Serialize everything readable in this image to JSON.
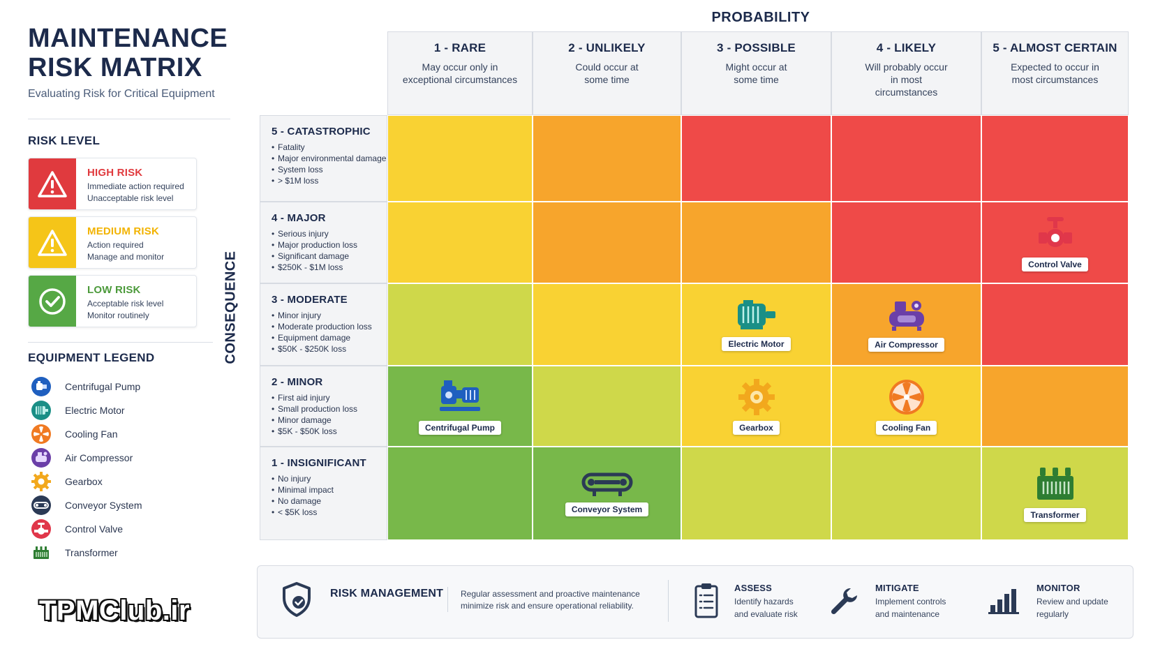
{
  "header": {
    "title_line1": "MAINTENANCE",
    "title_line2": "RISK MATRIX",
    "subtitle": "Evaluating Risk for Critical Equipment"
  },
  "risk_level": {
    "heading": "RISK LEVEL",
    "items": [
      {
        "label": "HIGH RISK",
        "line1": "Immediate action required",
        "line2": "Unacceptable risk level",
        "color": "#e03a3e",
        "icon": "warning-icon"
      },
      {
        "label": "MEDIUM RISK",
        "line1": "Action required",
        "line2": "Manage and monitor",
        "color": "#f5c518",
        "icon": "warning-icon"
      },
      {
        "label": "LOW RISK",
        "line1": "Acceptable risk level",
        "line2": "Monitor routinely",
        "color": "#56a845",
        "icon": "check-circle-icon"
      }
    ]
  },
  "equipment_legend": {
    "heading": "EQUIPMENT LEGEND",
    "items": [
      {
        "label": "Centrifugal Pump",
        "icon": "pump-icon",
        "color": "#1f5fbf"
      },
      {
        "label": "Electric Motor",
        "icon": "motor-icon",
        "color": "#1a8f86"
      },
      {
        "label": "Cooling Fan",
        "icon": "fan-icon",
        "color": "#f07a22"
      },
      {
        "label": "Air Compressor",
        "icon": "compressor-icon",
        "color": "#6b3fa8"
      },
      {
        "label": "Gearbox",
        "icon": "gear-icon",
        "color": "#f2a81d"
      },
      {
        "label": "Conveyor System",
        "icon": "conveyor-icon",
        "color": "#2b3a55"
      },
      {
        "label": "Control Valve",
        "icon": "valve-icon",
        "color": "#e0374a"
      },
      {
        "label": "Transformer",
        "icon": "transformer-icon",
        "color": "#2e7d32"
      }
    ]
  },
  "brand": "TPMClub.ir",
  "matrix": {
    "probability_title": "PROBABILITY",
    "consequence_title": "CONSEQUENCE",
    "columns": [
      {
        "title": "1 - RARE",
        "desc": "May occur only in exceptional circumstances"
      },
      {
        "title": "2 - UNLIKELY",
        "desc": "Could occur at some time"
      },
      {
        "title": "3 - POSSIBLE",
        "desc": "Might occur at some time"
      },
      {
        "title": "4 - LIKELY",
        "desc": "Will probably occur in most circumstances"
      },
      {
        "title": "5 - ALMOST CERTAIN",
        "desc": "Expected to occur in most circumstances"
      }
    ],
    "rows": [
      {
        "title": "5 - CATASTROPHIC",
        "bullets": [
          "Fatality",
          "Major environmental damage",
          "System loss",
          "> $1M loss"
        ]
      },
      {
        "title": "4 - MAJOR",
        "bullets": [
          "Serious injury",
          "Major production loss",
          "Significant damage",
          "$250K - $1M loss"
        ]
      },
      {
        "title": "3 - MODERATE",
        "bullets": [
          "Minor injury",
          "Moderate production loss",
          "Equipment damage",
          "$50K - $250K loss"
        ]
      },
      {
        "title": "2 - MINOR",
        "bullets": [
          "First aid injury",
          "Small production loss",
          "Minor damage",
          "$5K - $50K loss"
        ]
      },
      {
        "title": "1 - INSIGNIFICANT",
        "bullets": [
          "No injury",
          "Minimal impact",
          "No damage",
          "< $5K loss"
        ]
      }
    ],
    "cell_colors": [
      [
        "#f9d233",
        "#f7a52c",
        "#ef4a48",
        "#ef4a48",
        "#ef4a48"
      ],
      [
        "#f9d233",
        "#f7a52c",
        "#f7a52c",
        "#ef4a48",
        "#ef4a48"
      ],
      [
        "#cfd84a",
        "#f9d233",
        "#f9d233",
        "#f7a52c",
        "#ef4a48"
      ],
      [
        "#78b84a",
        "#cfd84a",
        "#f9d233",
        "#f9d233",
        "#f7a52c"
      ],
      [
        "#78b84a",
        "#78b84a",
        "#cfd84a",
        "#cfd84a",
        "#cfd84a"
      ]
    ],
    "placements": [
      {
        "row": 1,
        "col": 4,
        "label": "Control Valve",
        "icon": "valve-icon"
      },
      {
        "row": 2,
        "col": 2,
        "label": "Electric Motor",
        "icon": "motor-icon"
      },
      {
        "row": 2,
        "col": 3,
        "label": "Air Compressor",
        "icon": "compressor-icon"
      },
      {
        "row": 3,
        "col": 0,
        "label": "Centrifugal Pump",
        "icon": "pump-icon"
      },
      {
        "row": 3,
        "col": 2,
        "label": "Gearbox",
        "icon": "gear-icon"
      },
      {
        "row": 3,
        "col": 3,
        "label": "Cooling Fan",
        "icon": "fan-icon"
      },
      {
        "row": 4,
        "col": 1,
        "label": "Conveyor System",
        "icon": "conveyor-icon"
      },
      {
        "row": 4,
        "col": 4,
        "label": "Transformer",
        "icon": "transformer-icon"
      }
    ]
  },
  "risk_management": {
    "title": "RISK MANAGEMENT",
    "text": "Regular assessment and proactive maintenance minimize risk and ensure operational reliability.",
    "steps": [
      {
        "title": "ASSESS",
        "line1": "Identify hazards",
        "line2": "and evaluate risk",
        "icon": "clipboard-icon"
      },
      {
        "title": "MITIGATE",
        "line1": "Implement controls",
        "line2": "and maintenance",
        "icon": "wrench-icon"
      },
      {
        "title": "MONITOR",
        "line1": "Review and update",
        "line2": "regularly",
        "icon": "bar-chart-icon"
      }
    ]
  }
}
